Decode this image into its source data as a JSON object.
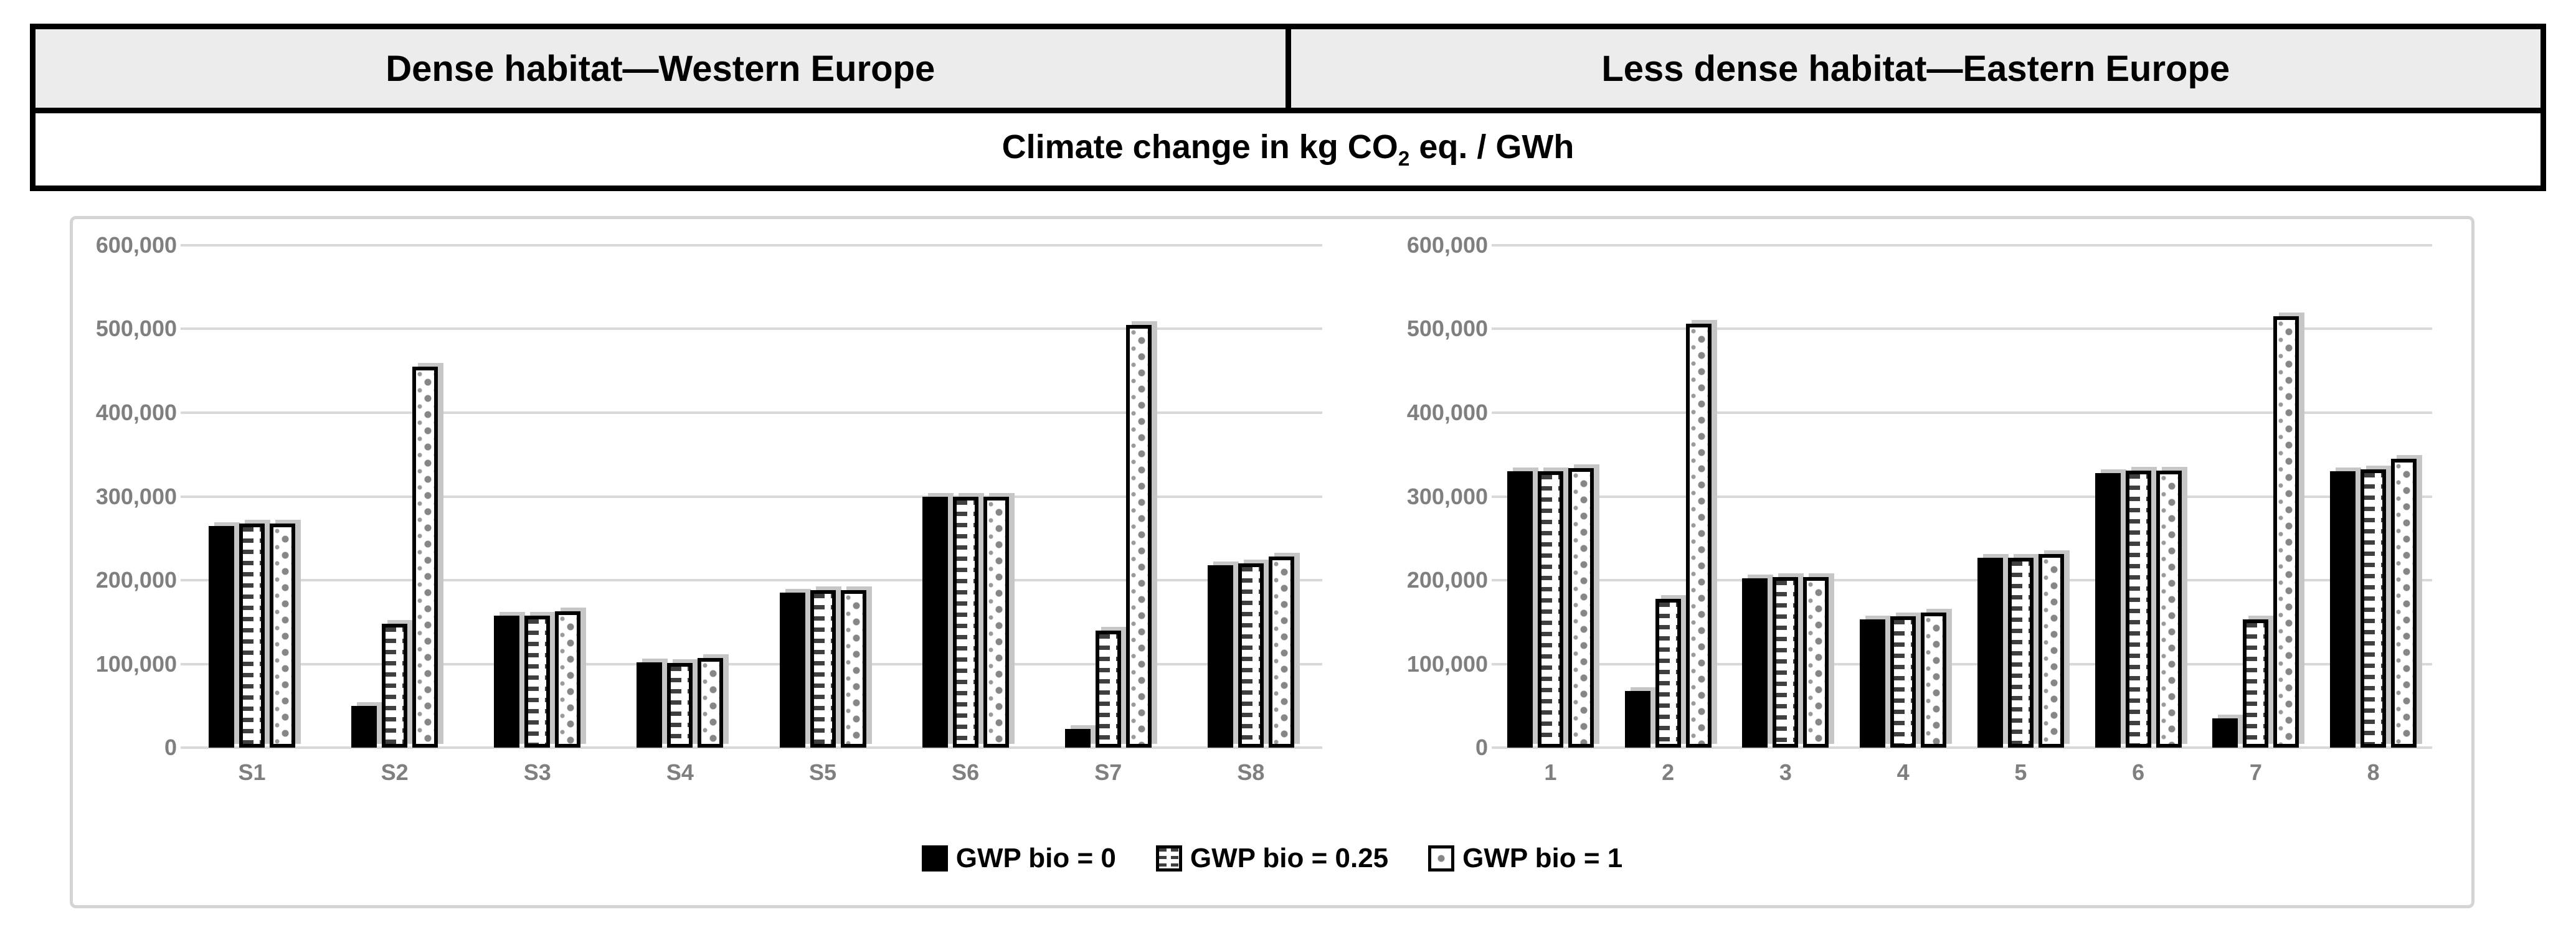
{
  "header": {
    "left_cell": "Dense habitat—Western Europe",
    "right_cell": "Less dense habitat—Eastern Europe",
    "subtitle_pre": "Climate change in kg CO",
    "subtitle_sub": "2",
    "subtitle_post": " eq. / GWh"
  },
  "legend": {
    "items": [
      {
        "label": "GWP bio = 0",
        "swatch": "solid"
      },
      {
        "label": "GWP bio = 0.25",
        "swatch": "dashes"
      },
      {
        "label": "GWP bio = 1",
        "swatch": "dots"
      }
    ]
  },
  "colors": {
    "header_bg": "#ececec",
    "table_border": "#000000",
    "frame_border": "#d4d4d4",
    "gridline": "#d9d9d9",
    "axis_text": "#7f7f7f",
    "bar_solid": "#000000",
    "bar_pattern_dark": "#3f3f3f",
    "bar_pattern_dot": "#868686",
    "bar_shadow": "#c6c6c6"
  },
  "chart_data": [
    {
      "type": "bar",
      "title": "Dense habitat—Western Europe",
      "xlabel": "",
      "ylabel": "Climate change in kg CO2 eq. / GWh",
      "ylim": [
        0,
        600000
      ],
      "grid": true,
      "legend_position": "bottom-shared",
      "yticks": [
        "600,000",
        "500,000",
        "400,000",
        "300,000",
        "200,000",
        "100,000",
        "0"
      ],
      "categories": [
        "S1",
        "S2",
        "S3",
        "S4",
        "S5",
        "S6",
        "S7",
        "S8"
      ],
      "series": [
        {
          "name": "GWP bio = 0",
          "values": [
            265000,
            50000,
            158000,
            102000,
            185000,
            300000,
            22000,
            218000
          ]
        },
        {
          "name": "GWP bio = 0.25",
          "values": [
            268000,
            148000,
            158000,
            101000,
            188000,
            300000,
            140000,
            220000
          ]
        },
        {
          "name": "GWP bio = 1",
          "values": [
            268000,
            455000,
            163000,
            107000,
            188000,
            300000,
            505000,
            228000
          ]
        }
      ]
    },
    {
      "type": "bar",
      "title": "Less dense habitat—Eastern Europe",
      "xlabel": "",
      "ylabel": "Climate change in kg CO2 eq. / GWh",
      "ylim": [
        0,
        600000
      ],
      "grid": true,
      "legend_position": "bottom-shared",
      "yticks": [
        "600,000",
        "500,000",
        "400,000",
        "300,000",
        "200,000",
        "100,000",
        "0"
      ],
      "categories": [
        "1",
        "2",
        "3",
        "4",
        "5",
        "6",
        "7",
        "8"
      ],
      "series": [
        {
          "name": "GWP bio = 0",
          "values": [
            330000,
            68000,
            202000,
            153000,
            227000,
            328000,
            35000,
            330000
          ]
        },
        {
          "name": "GWP bio = 0.25",
          "values": [
            330000,
            178000,
            204000,
            157000,
            227000,
            331000,
            153000,
            332000
          ]
        },
        {
          "name": "GWP bio = 1",
          "values": [
            334000,
            506000,
            204000,
            161000,
            231000,
            331000,
            515000,
            345000
          ]
        }
      ]
    }
  ]
}
